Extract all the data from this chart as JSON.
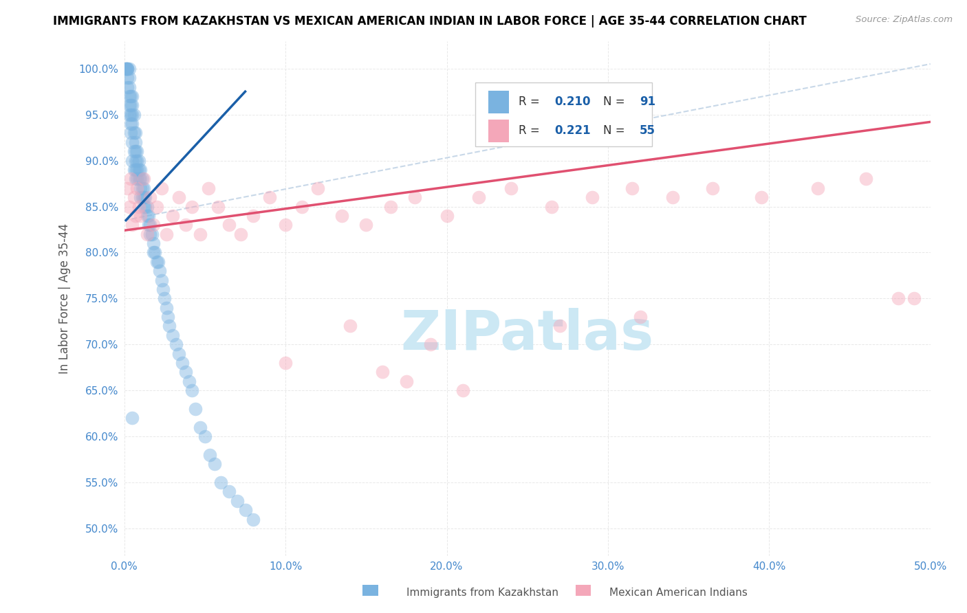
{
  "title": "IMMIGRANTS FROM KAZAKHSTAN VS MEXICAN AMERICAN INDIAN IN LABOR FORCE | AGE 35-44 CORRELATION CHART",
  "source": "Source: ZipAtlas.com",
  "ylabel": "In Labor Force | Age 35-44",
  "xlim": [
    0.0,
    0.5
  ],
  "ylim": [
    0.47,
    1.03
  ],
  "xticks": [
    0.0,
    0.1,
    0.2,
    0.3,
    0.4,
    0.5
  ],
  "xtick_labels": [
    "0.0%",
    "10.0%",
    "20.0%",
    "30.0%",
    "40.0%",
    "50.0%"
  ],
  "yticks": [
    0.5,
    0.55,
    0.6,
    0.65,
    0.7,
    0.75,
    0.8,
    0.85,
    0.9,
    0.95,
    1.0
  ],
  "ytick_labels": [
    "50.0%",
    "55.0%",
    "60.0%",
    "65.0%",
    "70.0%",
    "75.0%",
    "80.0%",
    "85.0%",
    "90.0%",
    "95.0%",
    "100.0%"
  ],
  "blue_color": "#7ab3e0",
  "pink_color": "#f4a7b9",
  "blue_line_color": "#1a5fa8",
  "pink_line_color": "#e05070",
  "watermark_color": "#cce8f4",
  "background_color": "#ffffff",
  "title_color": "#000000",
  "tick_color": "#4488cc",
  "grid_color": "#e8e8e8",
  "blue_scatter_x": [
    0.001,
    0.001,
    0.001,
    0.002,
    0.002,
    0.002,
    0.002,
    0.002,
    0.003,
    0.003,
    0.003,
    0.003,
    0.003,
    0.003,
    0.004,
    0.004,
    0.004,
    0.004,
    0.004,
    0.005,
    0.005,
    0.005,
    0.005,
    0.005,
    0.005,
    0.006,
    0.006,
    0.006,
    0.006,
    0.007,
    0.007,
    0.007,
    0.007,
    0.007,
    0.007,
    0.008,
    0.008,
    0.008,
    0.008,
    0.009,
    0.009,
    0.009,
    0.01,
    0.01,
    0.01,
    0.01,
    0.011,
    0.011,
    0.011,
    0.012,
    0.012,
    0.012,
    0.013,
    0.013,
    0.014,
    0.014,
    0.015,
    0.015,
    0.016,
    0.016,
    0.017,
    0.018,
    0.018,
    0.019,
    0.02,
    0.021,
    0.022,
    0.023,
    0.024,
    0.025,
    0.026,
    0.027,
    0.028,
    0.03,
    0.032,
    0.034,
    0.036,
    0.038,
    0.04,
    0.042,
    0.044,
    0.047,
    0.05,
    0.053,
    0.056,
    0.06,
    0.065,
    0.07,
    0.075,
    0.08,
    0.005
  ],
  "blue_scatter_y": [
    1.0,
    1.0,
    1.0,
    1.0,
    1.0,
    1.0,
    0.99,
    0.98,
    1.0,
    0.99,
    0.98,
    0.97,
    0.96,
    0.95,
    0.97,
    0.96,
    0.95,
    0.94,
    0.93,
    0.97,
    0.96,
    0.95,
    0.94,
    0.92,
    0.9,
    0.95,
    0.93,
    0.91,
    0.89,
    0.93,
    0.92,
    0.91,
    0.9,
    0.89,
    0.88,
    0.91,
    0.9,
    0.89,
    0.88,
    0.9,
    0.89,
    0.88,
    0.89,
    0.88,
    0.87,
    0.86,
    0.88,
    0.87,
    0.86,
    0.87,
    0.86,
    0.85,
    0.86,
    0.85,
    0.85,
    0.84,
    0.84,
    0.83,
    0.83,
    0.82,
    0.82,
    0.81,
    0.8,
    0.8,
    0.79,
    0.79,
    0.78,
    0.77,
    0.76,
    0.75,
    0.74,
    0.73,
    0.72,
    0.71,
    0.7,
    0.69,
    0.68,
    0.67,
    0.66,
    0.65,
    0.63,
    0.61,
    0.6,
    0.58,
    0.57,
    0.55,
    0.54,
    0.53,
    0.52,
    0.51,
    0.62
  ],
  "pink_scatter_x": [
    0.002,
    0.003,
    0.004,
    0.005,
    0.006,
    0.007,
    0.008,
    0.009,
    0.01,
    0.012,
    0.014,
    0.016,
    0.018,
    0.02,
    0.023,
    0.026,
    0.03,
    0.034,
    0.038,
    0.042,
    0.047,
    0.052,
    0.058,
    0.065,
    0.072,
    0.08,
    0.09,
    0.1,
    0.11,
    0.12,
    0.135,
    0.15,
    0.165,
    0.18,
    0.2,
    0.22,
    0.24,
    0.265,
    0.29,
    0.315,
    0.34,
    0.365,
    0.395,
    0.43,
    0.46,
    0.49,
    0.1,
    0.16,
    0.19,
    0.21,
    0.14,
    0.27,
    0.32,
    0.175,
    0.48
  ],
  "pink_scatter_y": [
    0.87,
    0.85,
    0.88,
    0.83,
    0.86,
    0.84,
    0.87,
    0.85,
    0.84,
    0.88,
    0.82,
    0.86,
    0.83,
    0.85,
    0.87,
    0.82,
    0.84,
    0.86,
    0.83,
    0.85,
    0.82,
    0.87,
    0.85,
    0.83,
    0.82,
    0.84,
    0.86,
    0.83,
    0.85,
    0.87,
    0.84,
    0.83,
    0.85,
    0.86,
    0.84,
    0.86,
    0.87,
    0.85,
    0.86,
    0.87,
    0.86,
    0.87,
    0.86,
    0.87,
    0.88,
    0.75,
    0.68,
    0.67,
    0.7,
    0.65,
    0.72,
    0.72,
    0.73,
    0.66,
    0.75
  ],
  "blue_line_x": [
    0.001,
    0.075
  ],
  "blue_line_y": [
    0.835,
    0.975
  ],
  "pink_line_x": [
    0.0,
    0.5
  ],
  "pink_line_y": [
    0.824,
    0.942
  ],
  "ref_line_x": [
    0.0,
    0.5
  ],
  "ref_line_y": [
    0.835,
    1.005
  ]
}
